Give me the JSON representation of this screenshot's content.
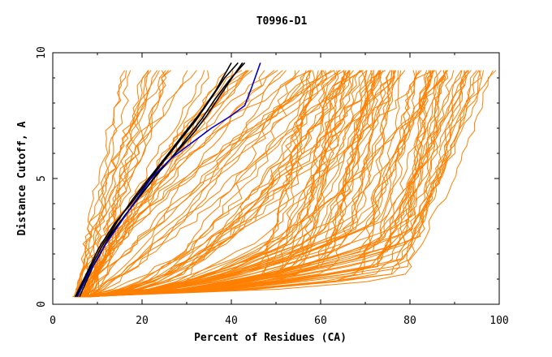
{
  "chart_data": {
    "type": "line",
    "title": "T0996-D1",
    "xlabel": "Percent of Residues (CA)",
    "ylabel": "Distance Cutoff, A",
    "xlim": [
      0,
      100
    ],
    "ylim": [
      0,
      10
    ],
    "x_ticks": [
      "0",
      "20",
      "40",
      "60",
      "80",
      "100"
    ],
    "y_ticks": [
      "0",
      "5",
      "10"
    ],
    "grid": false,
    "legend": "none",
    "colors": {
      "models": "#ff8000",
      "highlight_black": "#000000",
      "highlight_blue": "#0000cc",
      "frame": "#000000"
    },
    "series": [
      {
        "group": "good",
        "color": "#000000",
        "x": [
          5.0,
          7.5,
          10.2,
          13.8,
          17.5,
          21.0,
          24.5,
          28.0,
          32.0,
          35.5,
          38.5,
          41.5
        ],
        "y": [
          0.3,
          1.2,
          2.2,
          3.2,
          4.0,
          4.8,
          5.6,
          6.4,
          7.3,
          8.2,
          9.0,
          9.6
        ]
      },
      {
        "group": "good",
        "color": "#000000",
        "x": [
          5.5,
          8.0,
          11.0,
          14.5,
          18.0,
          21.5,
          25.5,
          29.0,
          33.0,
          36.5,
          40.0
        ],
        "y": [
          0.3,
          1.3,
          2.3,
          3.3,
          4.2,
          5.0,
          5.9,
          6.7,
          7.6,
          8.5,
          9.6
        ]
      },
      {
        "group": "good",
        "color": "#000000",
        "x": [
          5.2,
          7.2,
          10.0,
          13.0,
          16.5,
          20.0,
          24.0,
          28.0,
          31.5,
          34.5,
          37.5,
          40.5,
          42.5
        ],
        "y": [
          0.3,
          1.0,
          1.8,
          2.8,
          3.6,
          4.4,
          5.3,
          6.1,
          6.8,
          7.5,
          8.3,
          9.1,
          9.6
        ]
      },
      {
        "group": "good",
        "color": "#000000",
        "x": [
          6.0,
          9.0,
          12.5,
          16.0,
          19.5,
          23.0,
          26.5,
          30.0,
          33.5,
          36.5,
          39.5,
          43.0
        ],
        "y": [
          0.3,
          1.5,
          2.6,
          3.5,
          4.3,
          5.1,
          5.8,
          6.6,
          7.4,
          8.2,
          8.9,
          9.6
        ]
      },
      {
        "group": "best",
        "color": "#0000cc",
        "x": [
          5.5,
          8.0,
          11.5,
          15.0,
          18.5,
          22.0,
          26.5,
          31.0,
          35.5,
          40.0,
          43.0,
          44.5,
          46.5
        ],
        "y": [
          0.3,
          1.2,
          2.3,
          3.2,
          4.1,
          5.0,
          5.8,
          6.4,
          7.0,
          7.5,
          7.9,
          8.6,
          9.6
        ]
      }
    ]
  }
}
